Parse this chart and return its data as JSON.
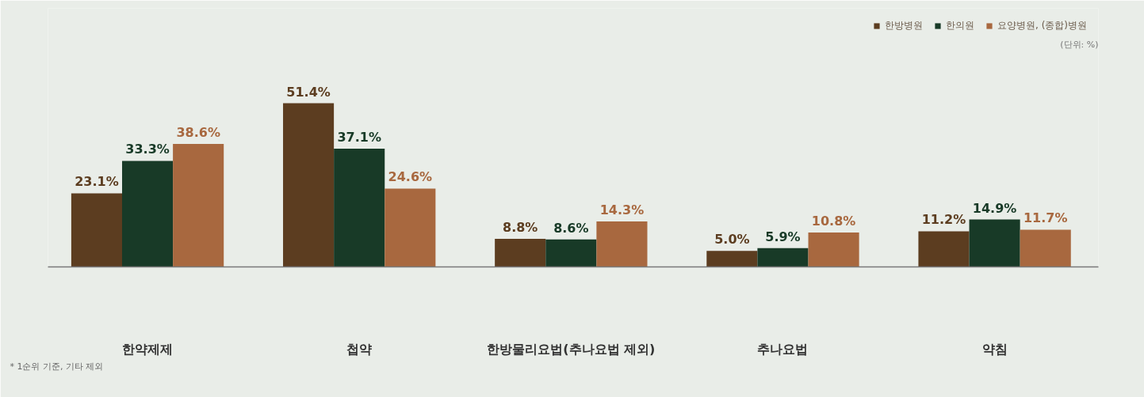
{
  "chart_data": {
    "type": "bar",
    "categories": [
      "한약제제",
      "첩약",
      "한방물리요법(추나요법 제외)",
      "추나요법",
      "약침"
    ],
    "series": [
      {
        "name": "한방병원",
        "color": "#5c3d20",
        "values": [
          23.1,
          51.4,
          8.8,
          5.0,
          11.2
        ],
        "value_labels": [
          "23.1%",
          "51.4%",
          "8.8%",
          "5.0%",
          "11.2%"
        ]
      },
      {
        "name": "한의원",
        "color": "#183a27",
        "values": [
          33.3,
          37.1,
          8.6,
          5.9,
          14.9
        ],
        "value_labels": [
          "33.3%",
          "37.1%",
          "8.6%",
          "5.9%",
          "14.9%"
        ]
      },
      {
        "name": "요양병원, (종합)병원",
        "color": "#a8683f",
        "values": [
          38.6,
          24.6,
          14.3,
          10.8,
          11.7
        ],
        "value_labels": [
          "38.6%",
          "24.6%",
          "14.3%",
          "10.8%",
          "11.7%"
        ]
      }
    ],
    "legend": "top right",
    "annotations": [
      "(단위: %)",
      "* 1순위 기준, 기타 제외"
    ]
  }
}
